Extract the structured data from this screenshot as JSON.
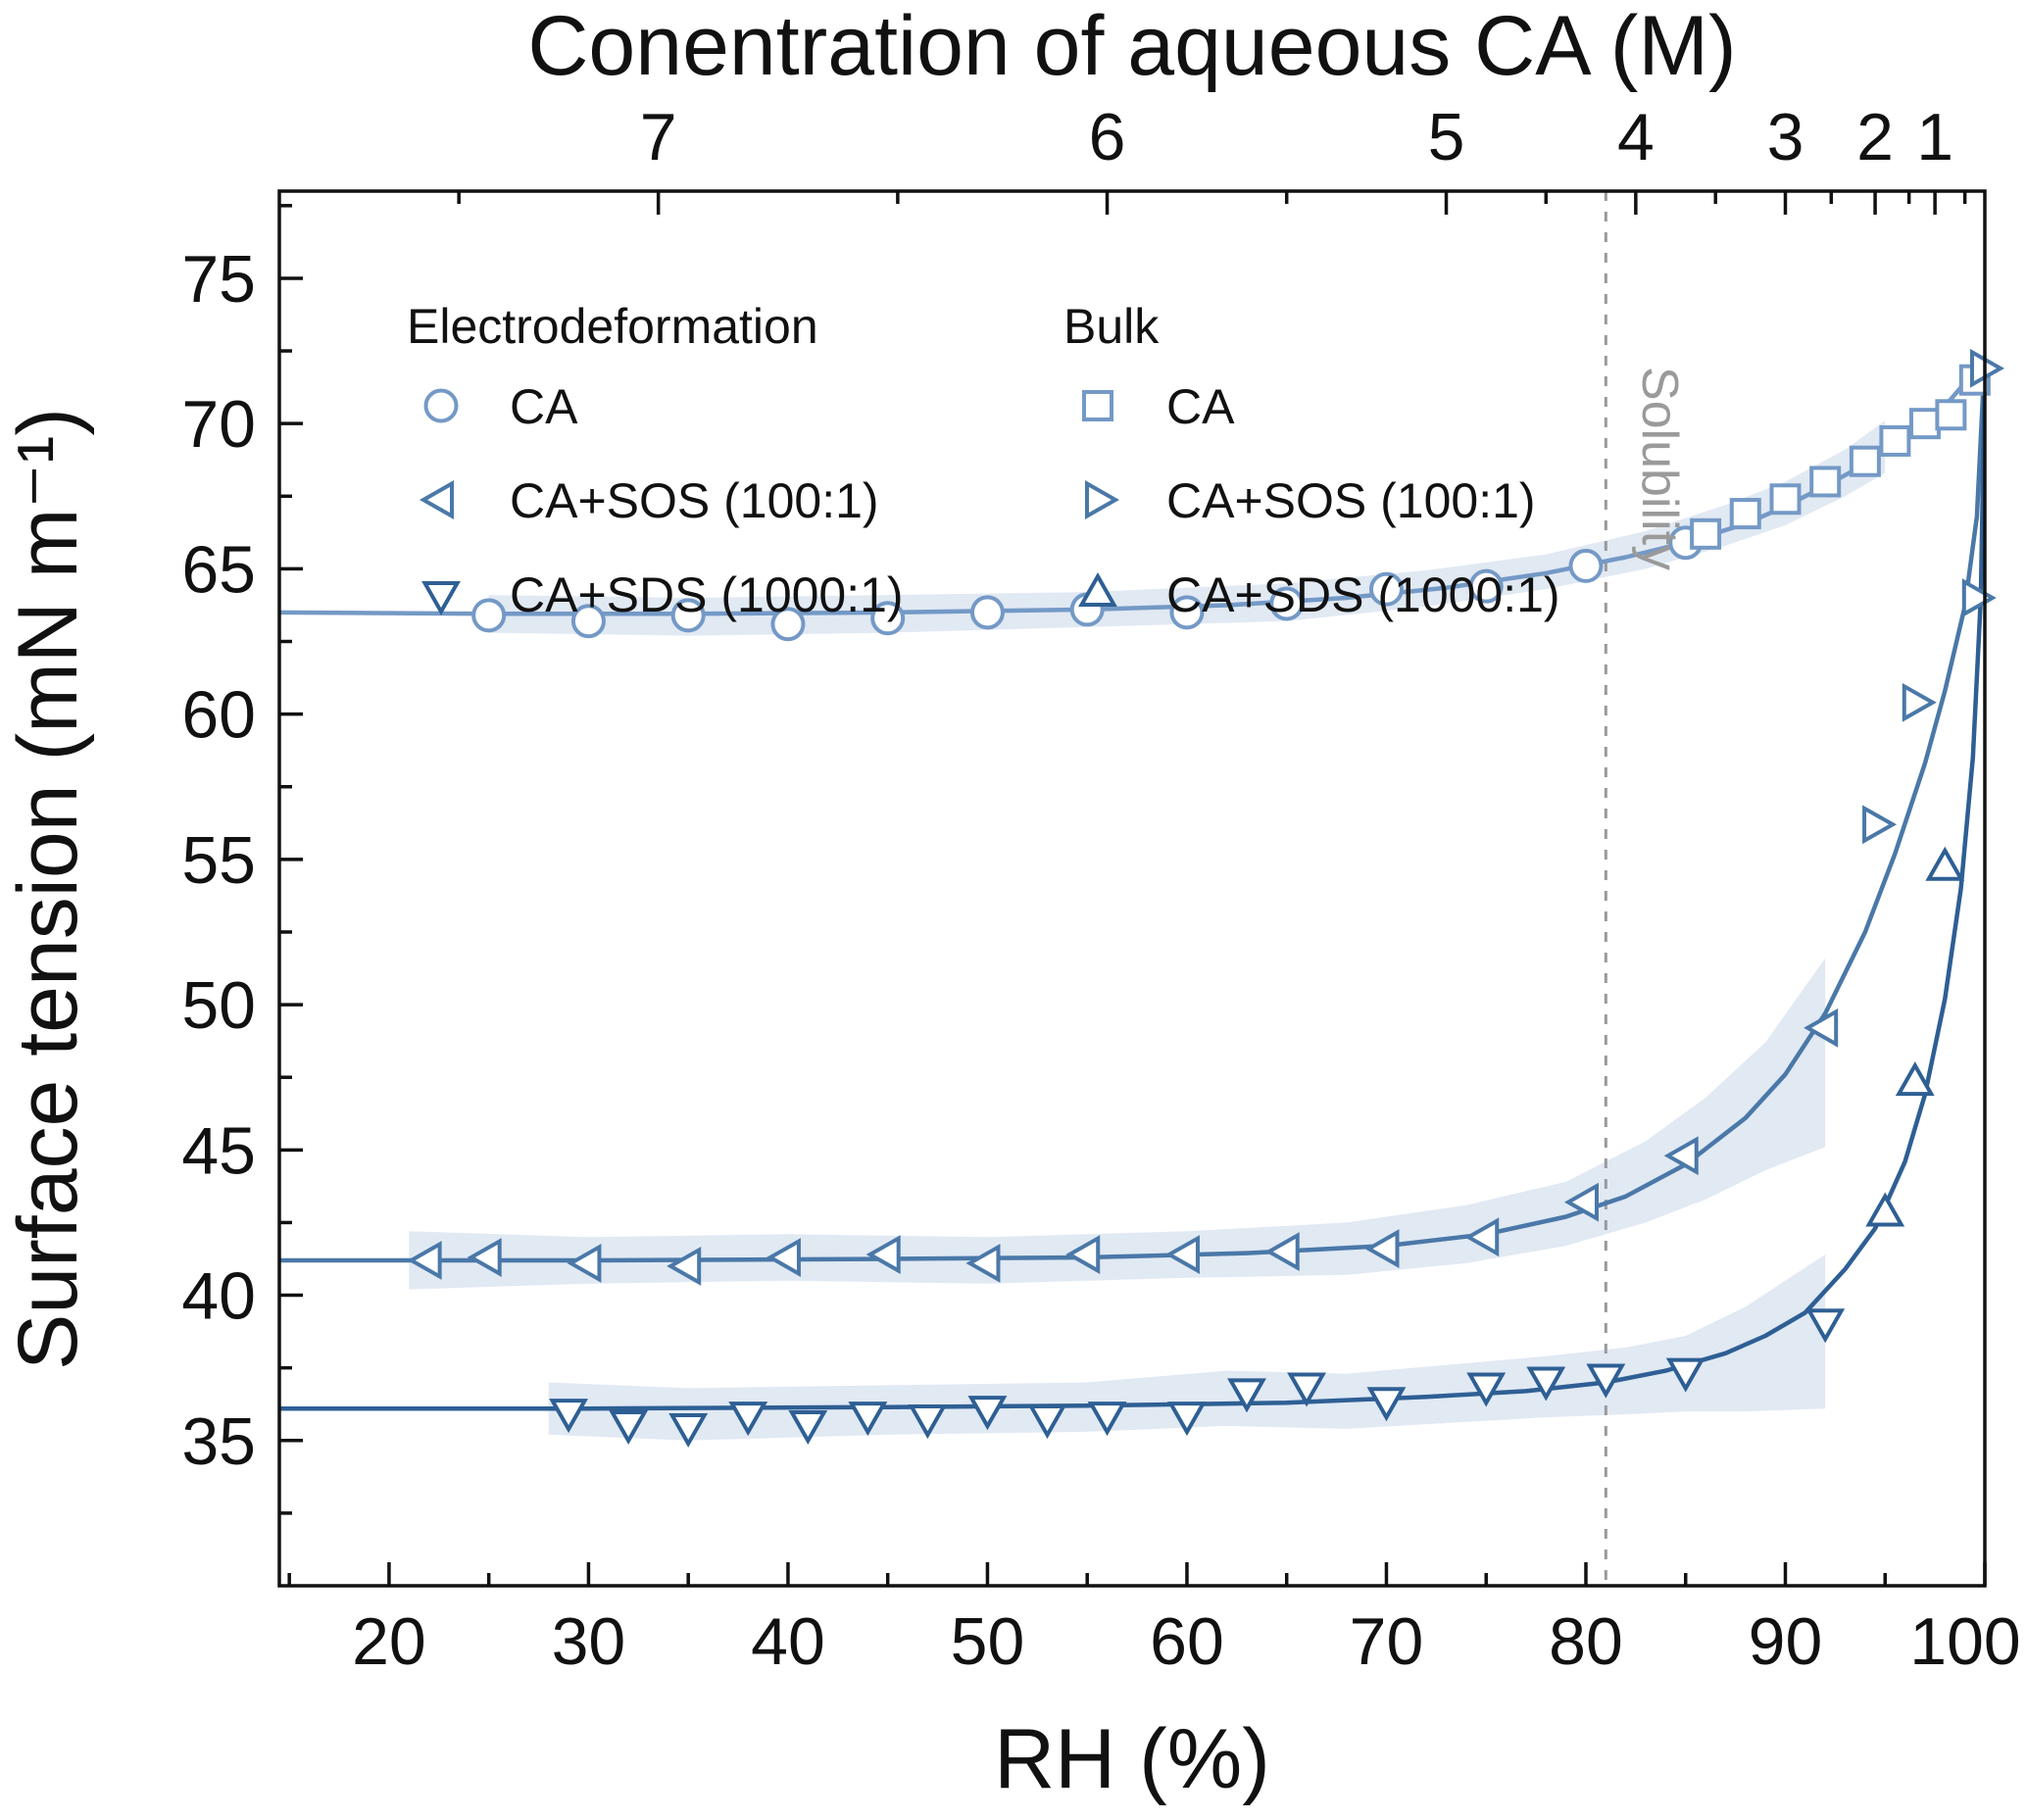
{
  "chart_data": {
    "type": "scatter-line",
    "title": "",
    "axes": {
      "bottom": {
        "label": "RH (%)",
        "min": 14.5,
        "max": 100,
        "major_ticks": [
          20,
          30,
          40,
          50,
          60,
          70,
          80,
          90,
          100
        ],
        "minor_step": 5
      },
      "left": {
        "label": "Surface tension (mN m⁻¹)",
        "min": 30,
        "max": 78,
        "major_ticks": [
          35,
          40,
          45,
          50,
          55,
          60,
          65,
          70,
          75
        ],
        "minor_step": 2.5
      },
      "top": {
        "label": "Conentration of aqueous CA (M)",
        "major_ticks": [
          {
            "label": "7",
            "rh": 33.5
          },
          {
            "label": "6",
            "rh": 56
          },
          {
            "label": "5",
            "rh": 73
          },
          {
            "label": "4",
            "rh": 82.5
          },
          {
            "label": "3",
            "rh": 90
          },
          {
            "label": "2",
            "rh": 94.5
          },
          {
            "label": "1",
            "rh": 97.5
          }
        ],
        "minor_ticks_rh": [
          23.5,
          45.5,
          65,
          78,
          86.5,
          92.3,
          96.2,
          99
        ]
      }
    },
    "solubility_marker": {
      "rh": 81,
      "label": "Solubility",
      "color": "#9a9a9a"
    },
    "legend": {
      "columns": [
        {
          "header": "Electrodeformation",
          "items": [
            {
              "label": "CA",
              "marker": "circle",
              "color": "#7499c6"
            },
            {
              "label": "CA+SOS (100:1)",
              "marker": "triangle-left",
              "color": "#4a78a8"
            },
            {
              "label": "CA+SDS (1000:1)",
              "marker": "triangle-down",
              "color": "#2e5f94"
            }
          ]
        },
        {
          "header": "Bulk",
          "items": [
            {
              "label": "CA",
              "marker": "square",
              "color": "#7499c6"
            },
            {
              "label": "CA+SOS (100:1)",
              "marker": "triangle-right",
              "color": "#4a78a8"
            },
            {
              "label": "CA+SDS (1000:1)",
              "marker": "triangle-up",
              "color": "#2e5f94"
            }
          ]
        }
      ]
    },
    "series": [
      {
        "name": "CA",
        "color": "#7499c6",
        "band_color": "#d9e4f0",
        "electro": {
          "marker": "circle",
          "label": "CA",
          "points": [
            [
              25,
              63.4
            ],
            [
              30,
              63.2
            ],
            [
              35,
              63.4
            ],
            [
              40,
              63.1
            ],
            [
              45,
              63.3
            ],
            [
              50,
              63.5
            ],
            [
              55,
              63.6
            ],
            [
              60,
              63.5
            ],
            [
              65,
              63.8
            ],
            [
              70,
              64.3
            ],
            [
              75,
              64.4
            ],
            [
              80,
              65.1
            ],
            [
              85,
              65.9
            ]
          ]
        },
        "bulk": {
          "marker": "square",
          "label": "CA",
          "points": [
            [
              86,
              66.2
            ],
            [
              88,
              66.9
            ],
            [
              90,
              67.4
            ],
            [
              92,
              68.0
            ],
            [
              94,
              68.7
            ],
            [
              95.5,
              69.4
            ],
            [
              97,
              70.0
            ],
            [
              98.3,
              70.3
            ],
            [
              99.5,
              71.5
            ]
          ]
        },
        "fit_line": [
          [
            14.5,
            63.5
          ],
          [
            25,
            63.45
          ],
          [
            35,
            63.45
          ],
          [
            45,
            63.5
          ],
          [
            55,
            63.6
          ],
          [
            62,
            63.75
          ],
          [
            68,
            64.0
          ],
          [
            73,
            64.35
          ],
          [
            78,
            64.85
          ],
          [
            82,
            65.4
          ],
          [
            85,
            65.9
          ],
          [
            88,
            66.55
          ],
          [
            90,
            67.15
          ],
          [
            92,
            67.85
          ],
          [
            94,
            68.6
          ],
          [
            96,
            69.5
          ],
          [
            98,
            70.6
          ],
          [
            100,
            72.2
          ]
        ],
        "band": [
          [
            25,
            62.8,
            64.1
          ],
          [
            35,
            62.7,
            64.0
          ],
          [
            45,
            62.8,
            64.1
          ],
          [
            55,
            63.0,
            64.2
          ],
          [
            65,
            63.2,
            64.5
          ],
          [
            72,
            63.7,
            64.95
          ],
          [
            78,
            64.3,
            65.5
          ],
          [
            83,
            65.0,
            66.3
          ],
          [
            87,
            65.8,
            67.2
          ],
          [
            90,
            66.5,
            68.0
          ],
          [
            93,
            67.5,
            69.1
          ],
          [
            95,
            68.3,
            70.1
          ]
        ]
      },
      {
        "name": "CA+SOS (100:1)",
        "color": "#4a78a8",
        "band_color": "#d9e4f0",
        "electro": {
          "marker": "triangle-left",
          "label": "CA+SOS (100:1)",
          "points": [
            [
              22,
              41.2
            ],
            [
              25,
              41.3
            ],
            [
              30,
              41.1
            ],
            [
              35,
              41.0
            ],
            [
              40,
              41.3
            ],
            [
              45,
              41.4
            ],
            [
              50,
              41.1
            ],
            [
              55,
              41.4
            ],
            [
              60,
              41.4
            ],
            [
              65,
              41.5
            ],
            [
              70,
              41.6
            ],
            [
              75,
              42.0
            ],
            [
              80,
              43.2
            ],
            [
              85,
              44.8
            ],
            [
              92,
              49.2
            ]
          ]
        },
        "bulk": {
          "marker": "triangle-right",
          "label": "CA+SOS (100:1)",
          "points": [
            [
              94.5,
              56.2
            ],
            [
              96.5,
              60.4
            ],
            [
              99.5,
              64.0
            ],
            [
              99.9,
              71.9
            ]
          ]
        },
        "fit_line": [
          [
            14.5,
            41.2
          ],
          [
            30,
            41.2
          ],
          [
            45,
            41.25
          ],
          [
            55,
            41.3
          ],
          [
            63,
            41.45
          ],
          [
            70,
            41.7
          ],
          [
            75,
            42.1
          ],
          [
            79,
            42.7
          ],
          [
            82,
            43.4
          ],
          [
            85,
            44.5
          ],
          [
            88,
            46.1
          ],
          [
            90,
            47.6
          ],
          [
            92,
            49.7
          ],
          [
            94,
            52.5
          ],
          [
            95.5,
            55.2
          ],
          [
            97,
            58.3
          ],
          [
            98,
            60.8
          ],
          [
            99,
            63.7
          ],
          [
            99.6,
            66.8
          ],
          [
            100,
            72.3
          ]
        ],
        "band": [
          [
            21,
            40.2,
            42.2
          ],
          [
            30,
            40.4,
            42.0
          ],
          [
            40,
            40.5,
            42.1
          ],
          [
            50,
            40.4,
            42.0
          ],
          [
            60,
            40.6,
            42.2
          ],
          [
            68,
            40.7,
            42.5
          ],
          [
            74,
            41.1,
            43.1
          ],
          [
            79,
            41.7,
            43.9
          ],
          [
            83,
            42.5,
            45.3
          ],
          [
            86,
            43.3,
            46.8
          ],
          [
            89,
            44.3,
            48.7
          ],
          [
            92,
            45.1,
            51.6
          ]
        ]
      },
      {
        "name": "CA+SDS (1000:1)",
        "color": "#2e5f94",
        "band_color": "#d9e4f0",
        "electro": {
          "marker": "triangle-down",
          "label": "CA+SDS (1000:1)",
          "points": [
            [
              29,
              36.0
            ],
            [
              32,
              35.6
            ],
            [
              35,
              35.5
            ],
            [
              38,
              35.9
            ],
            [
              41,
              35.6
            ],
            [
              44,
              35.9
            ],
            [
              47,
              35.8
            ],
            [
              50,
              36.1
            ],
            [
              53,
              35.8
            ],
            [
              56,
              35.9
            ],
            [
              60,
              35.9
            ],
            [
              63,
              36.7
            ],
            [
              66,
              36.9
            ],
            [
              70,
              36.4
            ],
            [
              75,
              36.9
            ],
            [
              78,
              37.1
            ],
            [
              81,
              37.2
            ],
            [
              85,
              37.4
            ],
            [
              92,
              39.1
            ]
          ]
        },
        "bulk": {
          "marker": "triangle-up",
          "label": "CA+SDS (1000:1)",
          "points": [
            [
              95,
              42.8
            ],
            [
              96.5,
              47.3
            ],
            [
              98,
              54.7
            ]
          ]
        },
        "fit_line": [
          [
            14.5,
            36.1
          ],
          [
            30,
            36.1
          ],
          [
            45,
            36.15
          ],
          [
            55,
            36.2
          ],
          [
            65,
            36.3
          ],
          [
            72,
            36.5
          ],
          [
            77,
            36.7
          ],
          [
            81,
            37.0
          ],
          [
            84,
            37.4
          ],
          [
            87,
            38.0
          ],
          [
            89,
            38.6
          ],
          [
            91,
            39.4
          ],
          [
            93,
            40.9
          ],
          [
            94.5,
            42.3
          ],
          [
            96,
            44.6
          ],
          [
            97,
            46.9
          ],
          [
            98,
            50.2
          ],
          [
            98.8,
            54.0
          ],
          [
            99.4,
            58.5
          ],
          [
            99.8,
            64.0
          ],
          [
            100,
            71.8
          ]
        ],
        "band": [
          [
            28,
            35.2,
            37.0
          ],
          [
            35,
            35.0,
            36.8
          ],
          [
            45,
            35.2,
            36.9
          ],
          [
            55,
            35.3,
            37.0
          ],
          [
            62,
            35.5,
            37.4
          ],
          [
            68,
            35.4,
            37.3
          ],
          [
            73,
            35.6,
            37.6
          ],
          [
            78,
            35.8,
            37.9
          ],
          [
            82,
            35.9,
            38.2
          ],
          [
            85,
            36.0,
            38.6
          ],
          [
            88,
            36.0,
            39.6
          ],
          [
            92,
            36.1,
            41.4
          ]
        ]
      }
    ]
  }
}
